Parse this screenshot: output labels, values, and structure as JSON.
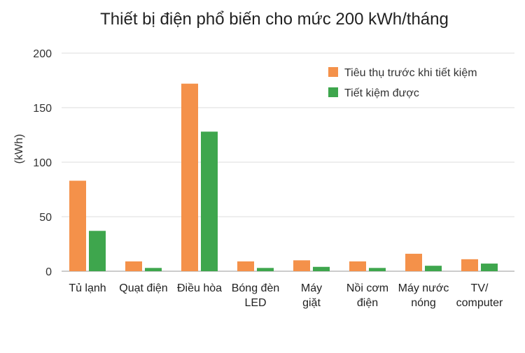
{
  "chart_data": {
    "type": "bar",
    "title": "Thiết bị điện phổ biến cho mức 200 kWh/tháng",
    "xlabel": "",
    "ylabel": "(kWh)",
    "ylim": [
      0,
      200
    ],
    "yticks": [
      0,
      50,
      100,
      150,
      200
    ],
    "grid": true,
    "legend_position": "top-right",
    "categories": [
      [
        "Tủ lạnh"
      ],
      [
        "Quạt điện"
      ],
      [
        "Điều hòa"
      ],
      [
        "Bóng đèn",
        "LED"
      ],
      [
        "Máy",
        "giặt"
      ],
      [
        "Nồi cơm",
        "điện"
      ],
      [
        "Máy nước",
        "nóng"
      ],
      [
        "TV/",
        "computer"
      ]
    ],
    "series": [
      {
        "name": "Tiêu thụ trước khi tiết kiệm",
        "color": "#f4914a",
        "values": [
          83,
          9,
          172,
          9,
          10,
          9,
          16,
          11
        ]
      },
      {
        "name": "Tiết kiệm được",
        "color": "#3ea64d",
        "values": [
          37,
          3,
          128,
          3,
          4,
          3,
          5,
          7
        ]
      }
    ]
  }
}
